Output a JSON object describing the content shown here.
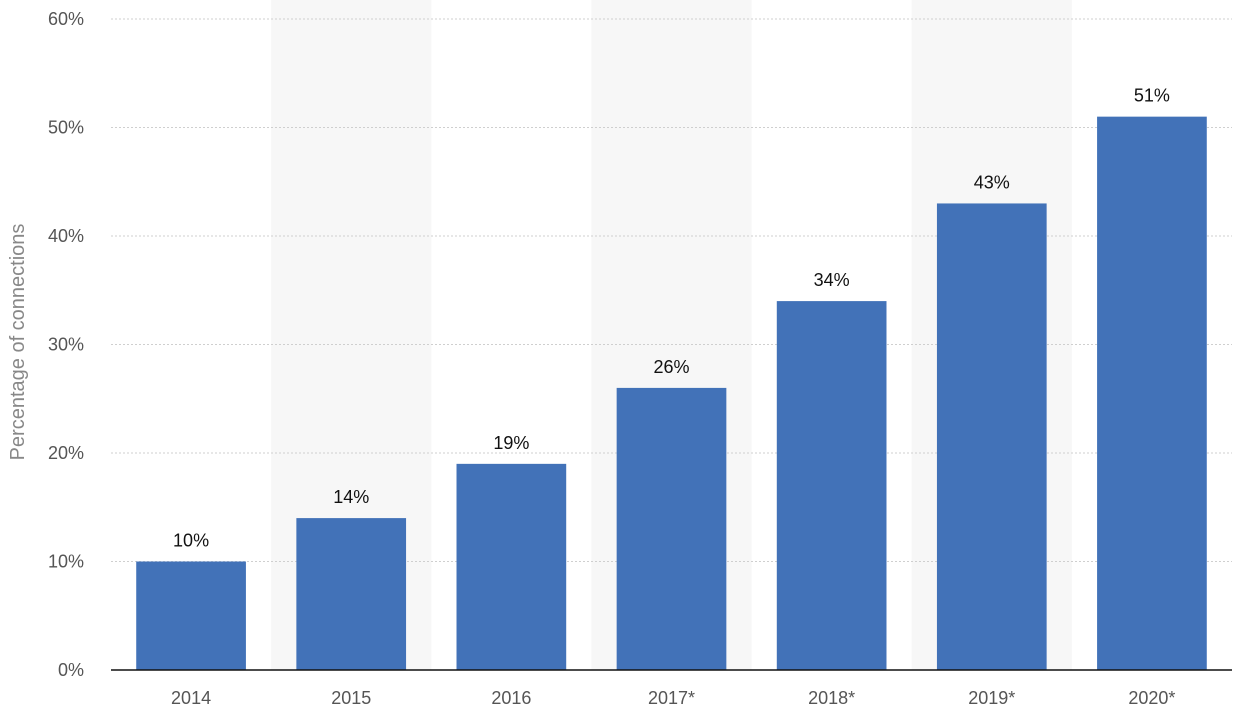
{
  "chart_data": {
    "type": "bar",
    "categories": [
      "2014",
      "2015",
      "2016",
      "2017*",
      "2018*",
      "2019*",
      "2020*"
    ],
    "values": [
      10,
      14,
      19,
      26,
      34,
      43,
      51
    ],
    "value_labels": [
      "10%",
      "14%",
      "19%",
      "26%",
      "34%",
      "43%",
      "51%"
    ],
    "title": "",
    "xlabel": "",
    "ylabel": "Percentage of connections",
    "ylim": [
      0,
      60
    ],
    "yticks": [
      0,
      10,
      20,
      30,
      40,
      50,
      60
    ],
    "ytick_labels": [
      "0%",
      "10%",
      "20%",
      "30%",
      "40%",
      "50%",
      "60%"
    ],
    "grid": true,
    "legend": "none",
    "bar_color": "#4272b8"
  }
}
